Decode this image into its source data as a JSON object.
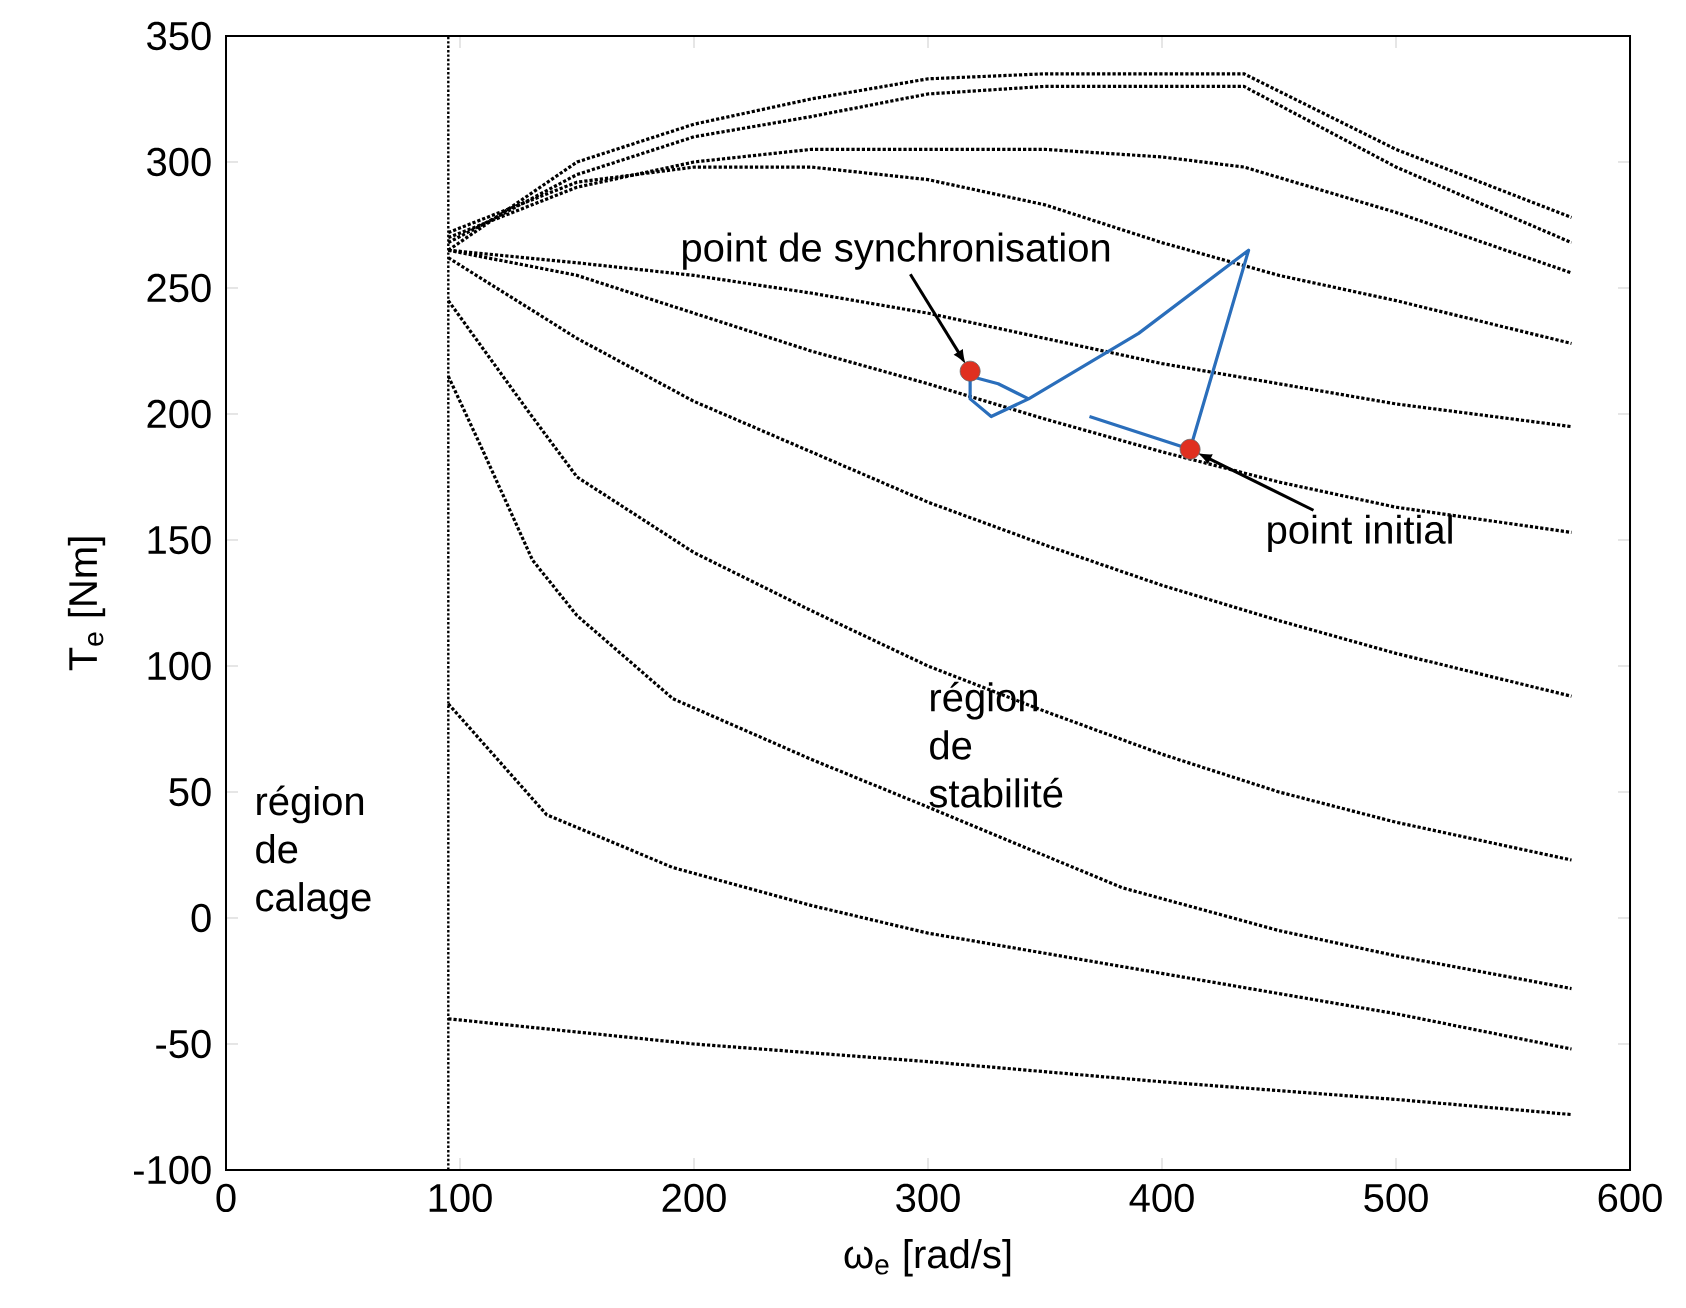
{
  "chart_data": {
    "type": "line",
    "xlabel": "ω$_{e}$ [rad/s]",
    "ylabel": "T$_{e}$ [Nm]",
    "xlim": [
      0,
      600
    ],
    "ylim": [
      -100,
      350
    ],
    "xticks": [
      0,
      100,
      200,
      300,
      400,
      500,
      600
    ],
    "yticks": [
      -100,
      -50,
      0,
      50,
      100,
      150,
      200,
      250,
      300,
      350
    ],
    "line_style": "dotted",
    "series": [
      {
        "color": "#000000",
        "x": [
          95,
          150,
          200,
          250,
          300,
          350,
          400,
          435,
          500,
          575
        ],
        "values": [
          265,
          300,
          315,
          325,
          333,
          335,
          335,
          335,
          305,
          278
        ]
      },
      {
        "color": "#000000",
        "x": [
          95,
          150,
          200,
          250,
          300,
          350,
          400,
          435,
          500,
          575
        ],
        "values": [
          268,
          295,
          310,
          318,
          327,
          330,
          330,
          330,
          298,
          268
        ]
      },
      {
        "color": "#000000",
        "x": [
          95,
          150,
          200,
          250,
          300,
          350,
          400,
          435,
          500,
          575
        ],
        "values": [
          270,
          290,
          300,
          305,
          305,
          305,
          302,
          298,
          280,
          256
        ]
      },
      {
        "color": "#000000",
        "x": [
          95,
          150,
          200,
          250,
          300,
          350,
          400,
          450,
          500,
          575
        ],
        "values": [
          272,
          292,
          298,
          298,
          293,
          283,
          268,
          255,
          245,
          228
        ]
      },
      {
        "color": "#000000",
        "x": [
          95,
          150,
          200,
          250,
          300,
          350,
          400,
          450,
          500,
          575
        ],
        "values": [
          265,
          260,
          255,
          248,
          240,
          230,
          220,
          212,
          204,
          195
        ]
      },
      {
        "color": "#000000",
        "x": [
          95,
          150,
          200,
          250,
          300,
          350,
          400,
          450,
          500,
          575
        ],
        "values": [
          265,
          255,
          240,
          225,
          212,
          198,
          185,
          173,
          163,
          153
        ]
      },
      {
        "color": "#000000",
        "x": [
          95,
          150,
          200,
          250,
          300,
          350,
          400,
          450,
          500,
          575
        ],
        "values": [
          262,
          230,
          205,
          185,
          165,
          148,
          132,
          118,
          105,
          88
        ]
      },
      {
        "color": "#000000",
        "x": [
          95,
          130,
          150,
          200,
          250,
          300,
          350,
          400,
          450,
          500,
          575
        ],
        "values": [
          245,
          200,
          175,
          145,
          122,
          100,
          82,
          65,
          50,
          38,
          23
        ]
      },
      {
        "color": "#000000",
        "x": [
          95,
          110,
          131,
          150,
          191,
          250,
          300,
          383,
          450,
          500,
          575
        ],
        "values": [
          215,
          185,
          142,
          120,
          87,
          63,
          44,
          12,
          -5,
          -15,
          -28
        ]
      },
      {
        "color": "#000000",
        "x": [
          95,
          137,
          191,
          250,
          300,
          400,
          500,
          575
        ],
        "values": [
          85,
          41,
          20,
          5,
          -6,
          -22,
          -38,
          -52
        ]
      },
      {
        "color": "#000000",
        "x": [
          95,
          200,
          300,
          400,
          500,
          575
        ],
        "values": [
          -40,
          -50,
          -57,
          -65,
          -72,
          -78
        ]
      },
      {
        "color": "#2a6ebb",
        "line_style": "solid",
        "x": [
          369,
          412,
          437,
          390,
          343,
          327,
          318,
          318,
          330,
          343
        ],
        "values": [
          199,
          186,
          265,
          232,
          206,
          199,
          206,
          215,
          212,
          206
        ]
      },
      {
        "type": "scatter",
        "marker": "circle",
        "color": "#e03020",
        "x": [
          318,
          412
        ],
        "values": [
          217,
          186
        ]
      }
    ],
    "ref_lines": [
      {
        "axis": "x",
        "value": 95,
        "color": "#000000",
        "line_style": "dotted"
      }
    ],
    "annotations": [
      {
        "text": "point de synchronisation",
        "x": 318,
        "y": 217
      },
      {
        "text": "point initial",
        "x": 412,
        "y": 186
      },
      "région de calage",
      "région de stabilité"
    ]
  }
}
